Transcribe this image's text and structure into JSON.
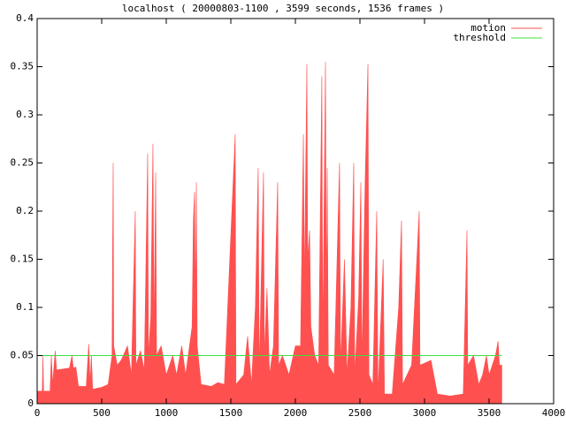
{
  "chart_data": {
    "type": "area",
    "title": "localhost ( 20000803-1100 , 3599 seconds, 1536 frames )",
    "xlim": [
      0,
      4000
    ],
    "xticks": [
      0,
      500,
      1000,
      1500,
      2000,
      2500,
      3000,
      3500,
      4000
    ],
    "ylim": [
      0,
      0.4
    ],
    "yticks": [
      0,
      0.05,
      0.1,
      0.15,
      0.2,
      0.25,
      0.3,
      0.35,
      0.4
    ],
    "legend": "top-right",
    "series": [
      {
        "name": "motion",
        "color": "#ff5050",
        "x": [
          0,
          40,
          45,
          50,
          100,
          110,
          120,
          140,
          150,
          250,
          270,
          280,
          300,
          320,
          380,
          400,
          410,
          420,
          430,
          500,
          550,
          580,
          585,
          589,
          593,
          620,
          650,
          700,
          730,
          760,
          765,
          800,
          830,
          856,
          862,
          880,
          897,
          905,
          918,
          925,
          960,
          1000,
          1050,
          1080,
          1120,
          1150,
          1200,
          1210,
          1219,
          1226,
          1233,
          1240,
          1270,
          1350,
          1400,
          1450,
          1534,
          1540,
          1600,
          1630,
          1660,
          1690,
          1712,
          1720,
          1753,
          1760,
          1780,
          1800,
          1830,
          1863,
          1870,
          1900,
          1950,
          2000,
          2040,
          2062,
          2070,
          2089,
          2095,
          2110,
          2120,
          2150,
          2180,
          2205,
          2212,
          2233,
          2240,
          2247,
          2255,
          2300,
          2342,
          2350,
          2380,
          2400,
          2430,
          2452,
          2460,
          2490,
          2507,
          2515,
          2540,
          2562,
          2570,
          2600,
          2630,
          2640,
          2680,
          2690,
          2750,
          2800,
          2822,
          2830,
          2900,
          2959,
          2965,
          3050,
          3100,
          3200,
          3300,
          3329,
          3335,
          3380,
          3420,
          3450,
          3480,
          3500,
          3550,
          3570,
          3580,
          3599
        ],
        "values": [
          0.013,
          0.013,
          0.05,
          0.013,
          0.013,
          0.05,
          0.02,
          0.055,
          0.035,
          0.037,
          0.05,
          0.037,
          0.038,
          0.018,
          0.018,
          0.062,
          0.02,
          0.05,
          0.015,
          0.017,
          0.02,
          0.05,
          0.17,
          0.25,
          0.06,
          0.04,
          0.045,
          0.06,
          0.03,
          0.2,
          0.04,
          0.055,
          0.035,
          0.26,
          0.05,
          0.09,
          0.27,
          0.07,
          0.24,
          0.05,
          0.06,
          0.03,
          0.05,
          0.03,
          0.06,
          0.03,
          0.08,
          0.19,
          0.22,
          0.1,
          0.23,
          0.06,
          0.02,
          0.018,
          0.022,
          0.02,
          0.28,
          0.02,
          0.03,
          0.07,
          0.02,
          0.1,
          0.245,
          0.03,
          0.24,
          0.05,
          0.12,
          0.03,
          0.06,
          0.23,
          0.04,
          0.05,
          0.03,
          0.06,
          0.06,
          0.28,
          0.12,
          0.353,
          0.15,
          0.18,
          0.08,
          0.05,
          0.04,
          0.34,
          0.06,
          0.355,
          0.1,
          0.245,
          0.04,
          0.03,
          0.25,
          0.04,
          0.15,
          0.03,
          0.1,
          0.25,
          0.03,
          0.11,
          0.23,
          0.04,
          0.23,
          0.353,
          0.03,
          0.02,
          0.2,
          0.01,
          0.15,
          0.01,
          0.01,
          0.1,
          0.19,
          0.02,
          0.04,
          0.2,
          0.04,
          0.045,
          0.01,
          0.008,
          0.01,
          0.18,
          0.04,
          0.05,
          0.02,
          0.03,
          0.05,
          0.03,
          0.05,
          0.065,
          0.04,
          0.04
        ]
      },
      {
        "name": "threshold",
        "color": "#40e040",
        "x": [
          0,
          3599
        ],
        "values": [
          0.05,
          0.05
        ]
      }
    ]
  }
}
